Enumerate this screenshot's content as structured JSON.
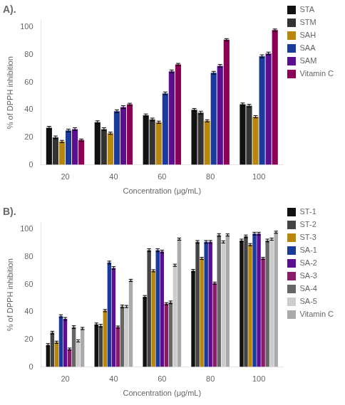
{
  "chart_data": [
    {
      "type": "bar",
      "title": "A).",
      "categories": [
        "20",
        "40",
        "60",
        "80",
        "100"
      ],
      "series": [
        {
          "name": "STA",
          "color": "#111111",
          "values": [
            27,
            31,
            36,
            40,
            44
          ],
          "errors": [
            1.0,
            1.0,
            1.0,
            1.0,
            1.0
          ]
        },
        {
          "name": "STM",
          "color": "#333333",
          "values": [
            20,
            26,
            33,
            38,
            43
          ],
          "errors": [
            1.0,
            1.0,
            1.0,
            1.0,
            1.0
          ]
        },
        {
          "name": "SAH",
          "color": "#b8860b",
          "values": [
            17,
            23,
            31,
            32,
            35
          ],
          "errors": [
            0.8,
            0.8,
            0.8,
            0.8,
            0.8
          ]
        },
        {
          "name": "SAA",
          "color": "#1a3a9c",
          "values": [
            25,
            39,
            52,
            67,
            79
          ],
          "errors": [
            1.0,
            1.0,
            1.0,
            1.0,
            1.0
          ]
        },
        {
          "name": "SAM",
          "color": "#5b0e91",
          "values": [
            26,
            42,
            68,
            72,
            81
          ],
          "errors": [
            1.0,
            1.0,
            1.0,
            1.0,
            1.0
          ]
        },
        {
          "name": "Vitamin C",
          "color": "#8b0057",
          "values": [
            18,
            44,
            73,
            91,
            98
          ],
          "errors": [
            0.8,
            0.8,
            0.8,
            0.8,
            0.8
          ]
        }
      ],
      "xlabel": "Concentration (μg/mL)",
      "ylabel": "% of DPPH inhibition",
      "ylim": [
        0,
        105
      ],
      "yticks": [
        0,
        20,
        40,
        60,
        80,
        100
      ],
      "grid": false,
      "legend": "right"
    },
    {
      "type": "bar",
      "title": "B).",
      "categories": [
        "20",
        "40",
        "60",
        "80",
        "100"
      ],
      "series": [
        {
          "name": "ST-1",
          "color": "#111111",
          "values": [
            16,
            31,
            51,
            70,
            92
          ],
          "errors": [
            1.0,
            1.0,
            1.0,
            1.0,
            1.0
          ]
        },
        {
          "name": "ST-2",
          "color": "#444444",
          "values": [
            25,
            30,
            85,
            91,
            95
          ],
          "errors": [
            1.0,
            1.0,
            1.0,
            1.0,
            1.0
          ]
        },
        {
          "name": "ST-3",
          "color": "#b8860b",
          "values": [
            18,
            41,
            70,
            79,
            89
          ],
          "errors": [
            0.8,
            0.8,
            0.8,
            0.8,
            0.8
          ]
        },
        {
          "name": "SA-1",
          "color": "#1a3a9c",
          "values": [
            37,
            76,
            85,
            91,
            97
          ],
          "errors": [
            1.0,
            1.0,
            1.0,
            1.0,
            1.0
          ]
        },
        {
          "name": "SA-2",
          "color": "#5b0e91",
          "values": [
            35,
            72,
            84,
            91,
            97
          ],
          "errors": [
            1.0,
            1.0,
            1.0,
            1.0,
            1.0
          ]
        },
        {
          "name": "SA-3",
          "color": "#8b1a6b",
          "values": [
            13,
            29,
            46,
            61,
            79
          ],
          "errors": [
            0.8,
            0.8,
            0.8,
            0.8,
            0.8
          ]
        },
        {
          "name": "SA-4",
          "color": "#666666",
          "values": [
            29,
            44,
            47,
            96,
            92
          ],
          "errors": [
            1.0,
            1.0,
            1.0,
            1.0,
            1.0
          ]
        },
        {
          "name": "SA-5",
          "color": "#cccccc",
          "values": [
            19,
            44,
            74,
            91,
            93
          ],
          "errors": [
            0.8,
            0.8,
            0.8,
            0.8,
            0.8
          ]
        },
        {
          "name": "Vitamin C",
          "color": "#aaaaaa",
          "values": [
            28,
            63,
            93,
            96,
            98
          ],
          "errors": [
            0.8,
            0.8,
            0.8,
            0.8,
            0.8
          ]
        }
      ],
      "xlabel": "Concentration (μg/mL)",
      "ylabel": "% of DPPH inhibition",
      "ylim": [
        0,
        105
      ],
      "yticks": [
        0,
        20,
        40,
        60,
        80,
        100
      ],
      "grid": false,
      "legend": "right"
    }
  ]
}
